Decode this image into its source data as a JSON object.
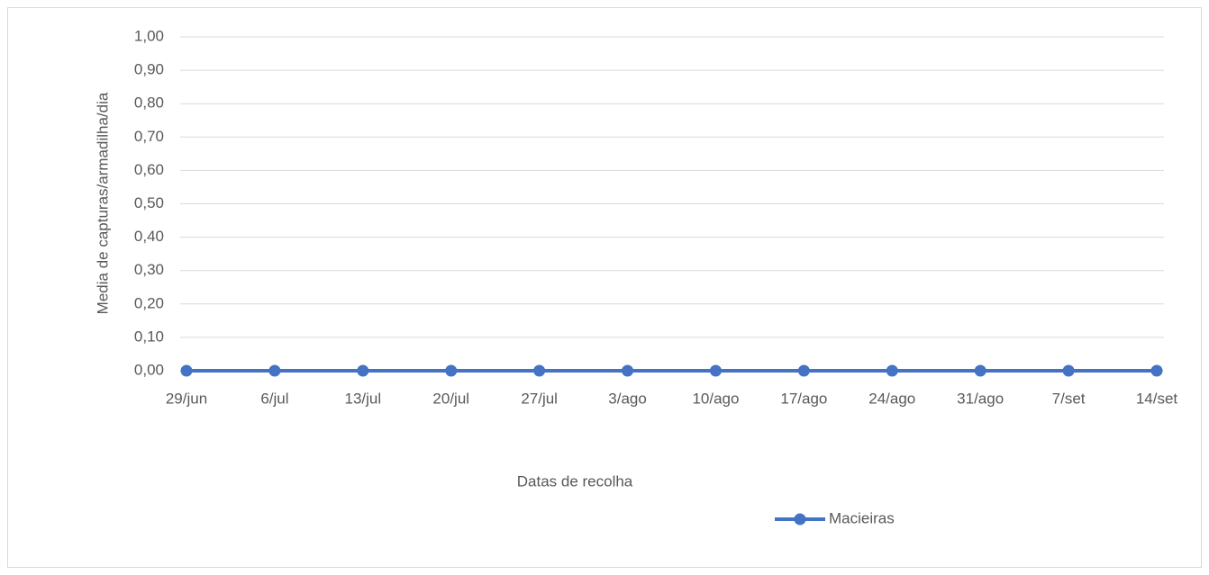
{
  "chart_data": {
    "type": "line",
    "x_label": "Datas de recolha",
    "y_label": "Media de capturas/armadilha/dia",
    "categories": [
      "29/jun",
      "6/jul",
      "13/jul",
      "20/jul",
      "27/jul",
      "3/ago",
      "10/ago",
      "17/ago",
      "24/ago",
      "31/ago",
      "7/set",
      "14/set"
    ],
    "series": [
      {
        "name": "Macieiras",
        "color": "#4472c4",
        "values": [
          0,
          0,
          0,
          0,
          0,
          0,
          0,
          0,
          0,
          0,
          0,
          0
        ]
      }
    ],
    "ylim": [
      0,
      1
    ],
    "yticks": [
      {
        "value": 0,
        "label": "0,00"
      },
      {
        "value": 0.1,
        "label": "0,10"
      },
      {
        "value": 0.2,
        "label": "0,20"
      },
      {
        "value": 0.3,
        "label": "0,30"
      },
      {
        "value": 0.4,
        "label": "0,40"
      },
      {
        "value": 0.5,
        "label": "0,50"
      },
      {
        "value": 0.6,
        "label": "0,60"
      },
      {
        "value": 0.7,
        "label": "0,70"
      },
      {
        "value": 0.8,
        "label": "0,80"
      },
      {
        "value": 0.9,
        "label": "0,90"
      },
      {
        "value": 1,
        "label": "1,00"
      }
    ],
    "grid": true,
    "legend": "bottom"
  }
}
